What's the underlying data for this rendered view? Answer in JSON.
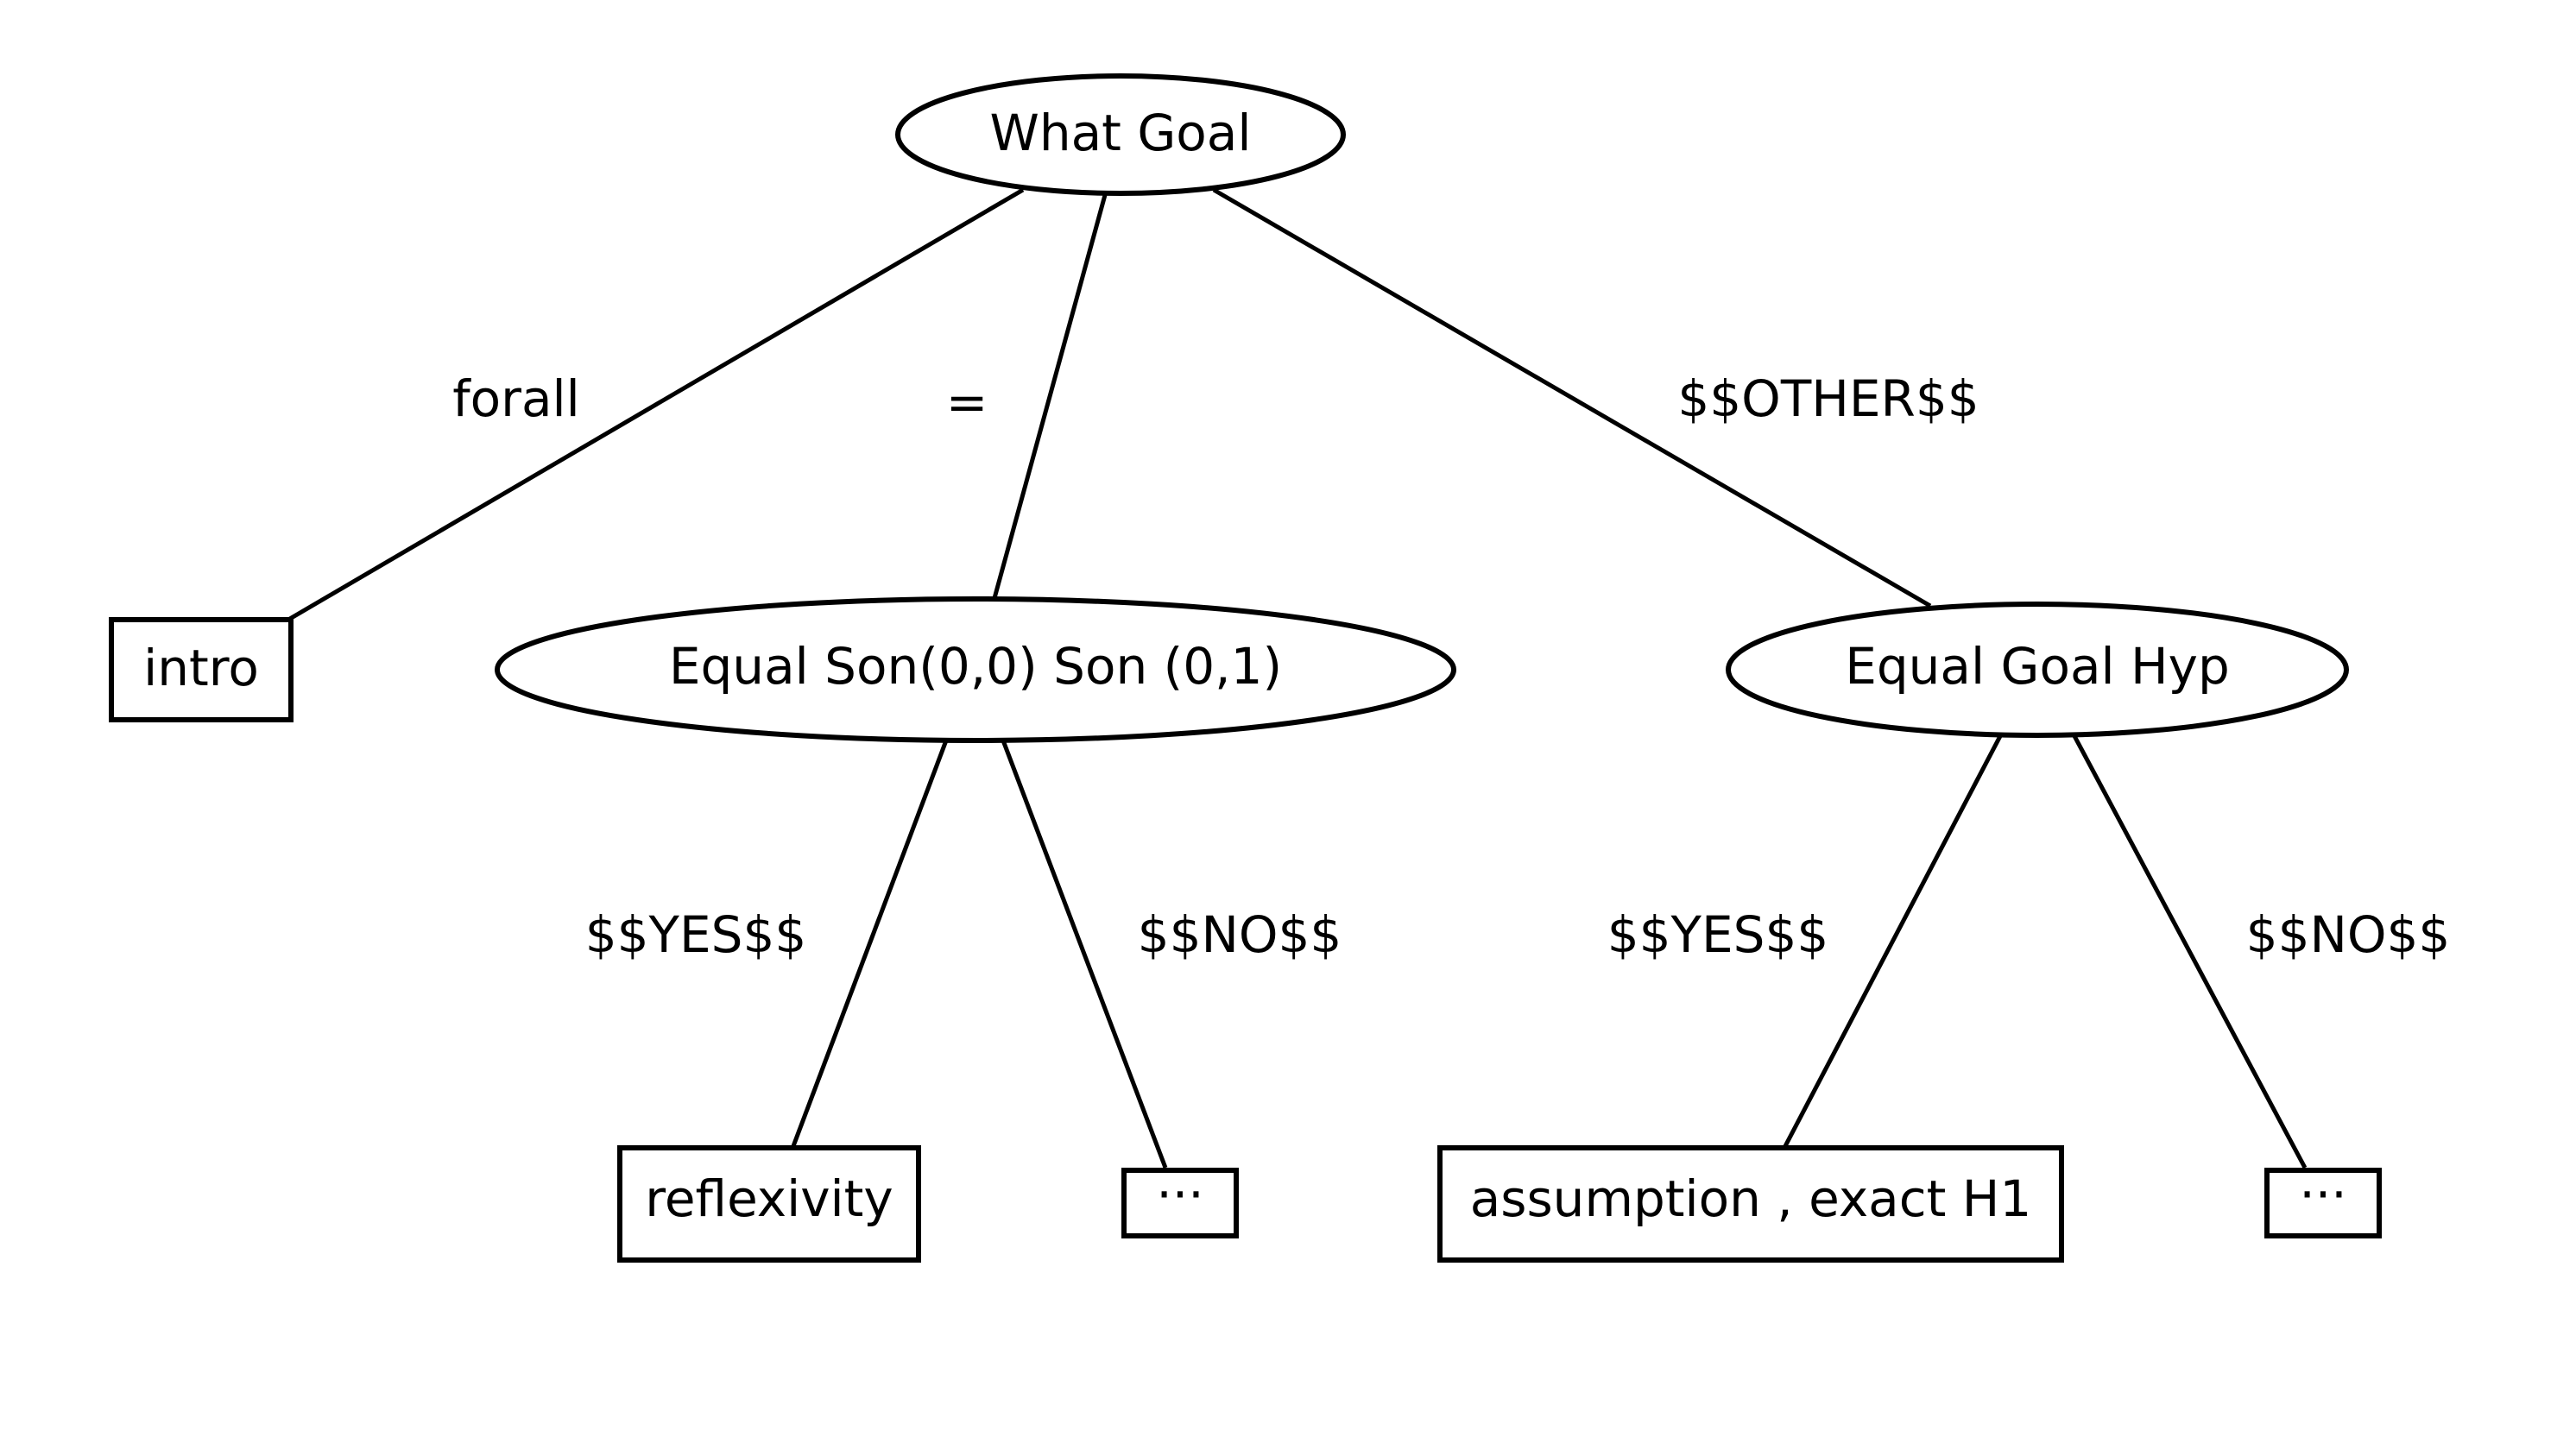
{
  "diagram": {
    "type": "decision-tree",
    "nodes": {
      "root": {
        "shape": "ellipse",
        "label": "What Goal"
      },
      "intro": {
        "shape": "box",
        "label": "intro"
      },
      "equal_son": {
        "shape": "ellipse",
        "label": "Equal Son(0,0) Son (0,1)"
      },
      "equal_goal_hyp": {
        "shape": "ellipse",
        "label": "Equal Goal Hyp"
      },
      "reflexivity": {
        "shape": "box",
        "label": "reflexivity"
      },
      "ellipsis_left": {
        "shape": "box",
        "label": "···"
      },
      "assumption": {
        "shape": "box",
        "label": "assumption , exact H1"
      },
      "ellipsis_right": {
        "shape": "box",
        "label": "···"
      }
    },
    "edges": {
      "root_intro": {
        "from": "root",
        "to": "intro",
        "label": "forall"
      },
      "root_equal_son": {
        "from": "root",
        "to": "equal_son",
        "label": "="
      },
      "root_equal_goal_hyp": {
        "from": "root",
        "to": "equal_goal_hyp",
        "label": "$$OTHER$$"
      },
      "equal_son_reflexivity": {
        "from": "equal_son",
        "to": "reflexivity",
        "label": "$$YES$$"
      },
      "equal_son_ellipsis": {
        "from": "equal_son",
        "to": "ellipsis_left",
        "label": "$$NO$$"
      },
      "goal_hyp_assumption": {
        "from": "equal_goal_hyp",
        "to": "assumption",
        "label": "$$YES$$"
      },
      "goal_hyp_ellipsis": {
        "from": "equal_goal_hyp",
        "to": "ellipsis_right",
        "label": "$$NO$$"
      }
    }
  }
}
